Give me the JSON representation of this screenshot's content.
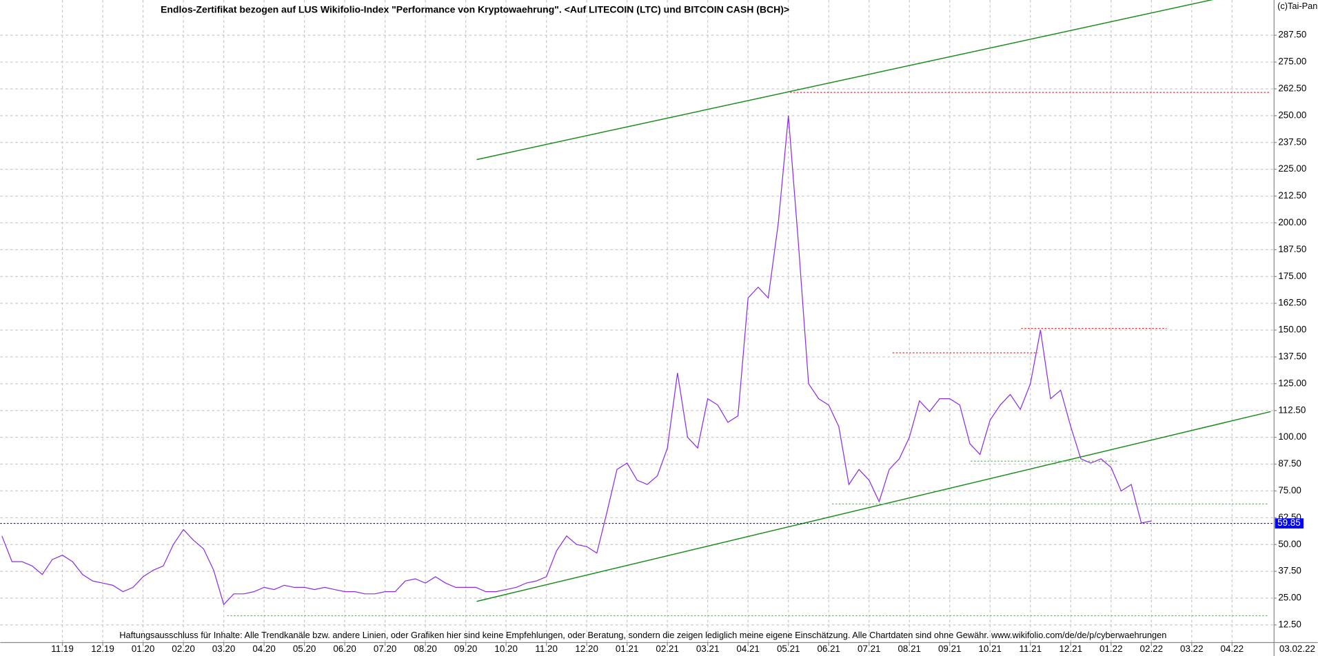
{
  "chart_data": {
    "type": "line",
    "title": "Endlos-Zertifikat bezogen auf LUS Wikifolio-Index \"Performance von Kryptowaehrung\". <Auf LITECOIN (LTC) und BITCOIN CASH (BCH)>",
    "footer": "Haftungsausschluss für Inhalte: Alle Trendkanäle bzw. andere Linien, oder Grafiken hier sind keine Empfehlungen, oder Beratung, sondern die zeigen lediglich meine eigene Einschätzung. Alle Chartdaten sind ohne Gewähr.  www.wikifolio.com/de/de/p/cyberwaehrungen",
    "copyright": "(c)Tai-Pan",
    "last_date": "03.02.22",
    "last_value": 59.85,
    "last_value_label": "59.85",
    "last_value_color": "#0000ff",
    "color": "#8a2be2",
    "grid": true,
    "categories": [
      null,
      null,
      null,
      null,
      null,
      null,
      "11.19",
      null,
      null,
      null,
      "12.19",
      null,
      null,
      null,
      "01.20",
      null,
      null,
      null,
      "02.20",
      null,
      null,
      null,
      "03.20",
      null,
      null,
      null,
      "04.20",
      null,
      null,
      null,
      "05.20",
      null,
      null,
      null,
      "06.20",
      null,
      null,
      null,
      "07.20",
      null,
      null,
      null,
      "08.20",
      null,
      null,
      null,
      "09.20",
      null,
      null,
      null,
      "10.20",
      null,
      null,
      null,
      "11.20",
      null,
      null,
      null,
      "12.20",
      null,
      null,
      null,
      "01.21",
      null,
      null,
      null,
      "02.21",
      null,
      null,
      null,
      "03.21",
      null,
      null,
      null,
      "04.21",
      null,
      null,
      null,
      "05.21",
      null,
      null,
      null,
      "06.21",
      null,
      null,
      null,
      "07.21",
      null,
      null,
      null,
      "08.21",
      null,
      null,
      null,
      "09.21",
      null,
      null,
      null,
      "10.21",
      null,
      null,
      null,
      "11.21",
      null,
      null,
      null,
      "12.21",
      null,
      null,
      null,
      "01.22",
      null,
      null,
      null,
      "02.22",
      null,
      null,
      null,
      "03.22",
      null,
      null,
      null,
      "04.22",
      null,
      null,
      null
    ],
    "values": [
      54,
      42,
      42,
      40,
      36,
      43,
      45,
      42,
      36,
      33,
      32,
      31,
      28,
      30,
      35,
      38,
      40,
      50,
      57,
      52,
      48,
      38,
      22,
      27,
      27,
      28,
      30,
      29,
      31,
      30,
      30,
      29,
      30,
      29,
      28,
      28,
      27,
      27,
      28,
      28,
      33,
      34,
      32,
      35,
      32,
      30,
      30,
      30,
      28,
      28,
      29,
      30,
      32,
      33,
      35,
      47,
      54,
      50,
      49,
      46,
      65,
      85,
      88,
      80,
      78,
      82,
      95,
      130,
      100,
      95,
      118,
      115,
      107,
      110,
      165,
      170,
      165,
      200,
      250,
      190,
      125,
      118,
      115,
      105,
      78,
      85,
      80,
      70,
      85,
      90,
      100,
      117,
      112,
      118,
      118,
      115,
      97,
      92,
      108,
      115,
      120,
      113,
      125,
      150,
      118,
      122,
      105,
      90,
      88,
      90,
      86,
      75,
      78,
      60,
      61,
      null,
      null,
      null,
      null,
      null,
      null,
      null,
      null,
      null,
      null,
      null
    ],
    "ylim": [
      0,
      300
    ],
    "yticks": [
      {
        "value": 12.5,
        "label": "12.50"
      },
      {
        "value": 25,
        "label": "25.00"
      },
      {
        "value": 37.5,
        "label": "37.50"
      },
      {
        "value": 50,
        "label": "50.00"
      },
      {
        "value": 62.5,
        "label": "62.50"
      },
      {
        "value": 75,
        "label": "75.00"
      },
      {
        "value": 87.5,
        "label": "87.50"
      },
      {
        "value": 100,
        "label": "100.00"
      },
      {
        "value": 112.5,
        "label": "112.50"
      },
      {
        "value": 125,
        "label": "125.00"
      },
      {
        "value": 137.5,
        "label": "137.50"
      },
      {
        "value": 150,
        "label": "150.00"
      },
      {
        "value": 162.5,
        "label": "162.50"
      },
      {
        "value": 175,
        "label": "175.00"
      },
      {
        "value": 187.5,
        "label": "187.50"
      },
      {
        "value": 200,
        "label": "200.00"
      },
      {
        "value": 212.5,
        "label": "212.50"
      },
      {
        "value": 225,
        "label": "225.00"
      },
      {
        "value": 237.5,
        "label": "237.50"
      },
      {
        "value": 250,
        "label": "250.00"
      },
      {
        "value": 262.5,
        "label": "262.50"
      },
      {
        "value": 275,
        "label": "275.00"
      },
      {
        "value": 287.5,
        "label": "287.50"
      }
    ]
  }
}
